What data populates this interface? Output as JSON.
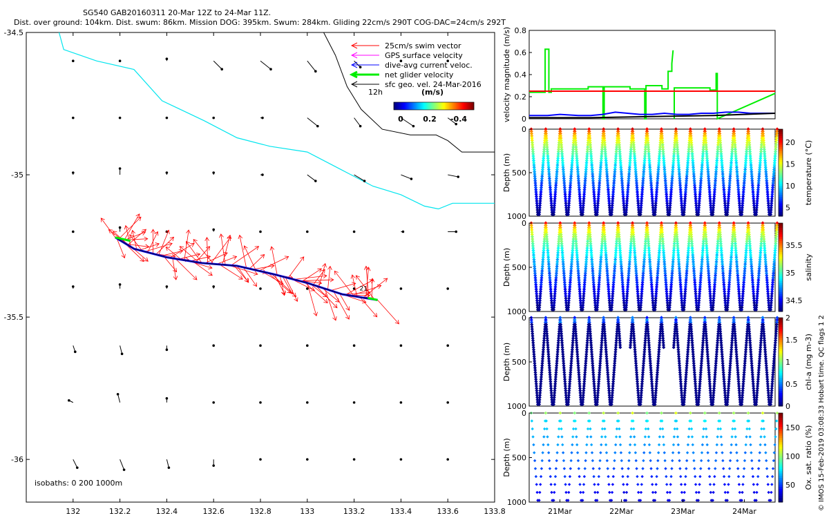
{
  "header": {
    "title": "SG540 GAB20160311 20-Mar 12Z to 24-Mar 11Z.",
    "subtitle": "Dist. over ground: 104km. Dist. swum: 86km. Mission DOG: 395km. Swum: 284km. Gliding 22cm/s 290T COG-DAC=24cm/s 292T"
  },
  "side_note": "© IMOS 15-Feb-2019 03:08:33 Hobart time. QC flags 1  2",
  "colors": {
    "swim": "#ff0000",
    "gps": "#ff00ff",
    "dac": "#0000ff",
    "net": "#00ee00",
    "sfc": "#000000",
    "isobath": "#00e5ee"
  },
  "chart_data": [
    {
      "type": "map",
      "name": "glider-track-map",
      "xlim": [
        131.8,
        133.8
      ],
      "ylim": [
        -36.15,
        -34.5
      ],
      "x_ticks": [
        "132",
        "132.2",
        "132.4",
        "132.6",
        "132.8",
        "133",
        "133.2",
        "133.4",
        "133.6",
        "133.8"
      ],
      "x_tick_values": [
        132,
        132.2,
        132.4,
        132.6,
        132.8,
        133,
        133.2,
        133.4,
        133.6,
        133.8
      ],
      "y_ticks": [
        "-34.5",
        "-35",
        "-35.5",
        "-36"
      ],
      "y_tick_values": [
        -34.5,
        -35,
        -35.5,
        -36
      ],
      "legend": [
        {
          "label": "25cm/s swim vector",
          "color": "#ff0000",
          "width": 1
        },
        {
          "label": "GPS surface velocity",
          "color": "#ff00ff",
          "width": 1
        },
        {
          "label": "dive-avg current veloc.",
          "color": "#0000ff",
          "width": 1
        },
        {
          "label": "net glider velocity",
          "color": "#00ee00",
          "width": 3
        },
        {
          "label": "sfc geo. vel. 24-Mar-2016",
          "color": "#000000",
          "width": 1
        }
      ],
      "scale_label": "12h",
      "colorbar": {
        "title": "(m/s)",
        "tick_labels": [
          "0",
          "0.2",
          "-0.4"
        ]
      },
      "isobath_note": "isobaths: 0   200  1000m",
      "isobath_1000m": [
        [
          131.94,
          -34.5
        ],
        [
          131.96,
          -34.56
        ],
        [
          132.1,
          -34.6
        ],
        [
          132.26,
          -34.63
        ],
        [
          132.38,
          -34.74
        ],
        [
          132.56,
          -34.81
        ],
        [
          132.7,
          -34.87
        ],
        [
          132.84,
          -34.9
        ],
        [
          133,
          -34.92
        ],
        [
          133.14,
          -34.98
        ],
        [
          133.28,
          -35.04
        ],
        [
          133.4,
          -35.07
        ],
        [
          133.5,
          -35.11
        ],
        [
          133.56,
          -35.12
        ],
        [
          133.62,
          -35.1
        ],
        [
          133.7,
          -35.1
        ],
        [
          133.8,
          -35.1
        ]
      ],
      "isobath_200m": [
        [
          133.07,
          -34.5
        ],
        [
          133.12,
          -34.58
        ],
        [
          133.17,
          -34.69
        ],
        [
          133.23,
          -34.77
        ],
        [
          133.32,
          -34.84
        ],
        [
          133.44,
          -34.86
        ],
        [
          133.55,
          -34.86
        ],
        [
          133.6,
          -34.88
        ],
        [
          133.66,
          -34.92
        ],
        [
          133.72,
          -34.92
        ],
        [
          133.8,
          -34.92
        ]
      ],
      "track": [
        [
          132.18,
          -35.22
        ],
        [
          132.26,
          -35.26
        ],
        [
          132.4,
          -35.29
        ],
        [
          132.55,
          -35.31
        ],
        [
          132.7,
          -35.32
        ],
        [
          132.86,
          -35.35
        ],
        [
          133.0,
          -35.38
        ],
        [
          133.15,
          -35.42
        ],
        [
          133.3,
          -35.44
        ]
      ],
      "track_label": "21",
      "current_grid_lon": [
        132,
        132.2,
        132.4,
        132.6,
        132.8,
        133,
        133.2,
        133.4,
        133.6
      ],
      "current_grid_lat": [
        -34.6,
        -34.8,
        -35.0,
        -35.2,
        -35.4,
        -35.6,
        -35.8,
        -36.0
      ],
      "current_vectors": [
        [
          [
            0,
            0
          ],
          [
            0,
            0
          ],
          [
            0,
            0.01
          ],
          [
            0.04,
            -0.04
          ],
          [
            0.05,
            -0.04
          ],
          [
            0.04,
            -0.05
          ],
          [
            0.03,
            -0.03
          ],
          [
            0,
            0
          ],
          [
            0,
            0
          ]
        ],
        [
          [
            0,
            0
          ],
          [
            0,
            0
          ],
          [
            0,
            0
          ],
          [
            0,
            0
          ],
          [
            0.01,
            0
          ],
          [
            0.05,
            -0.04
          ],
          [
            0.03,
            -0.04
          ],
          [
            0.06,
            -0.04
          ],
          [
            0.04,
            -0.03
          ]
        ],
        [
          [
            0,
            0.01
          ],
          [
            0,
            0.03
          ],
          [
            0,
            0.01
          ],
          [
            0,
            0.01
          ],
          [
            0.01,
            0
          ],
          [
            0.04,
            -0.03
          ],
          [
            0.05,
            -0.03
          ],
          [
            0.05,
            -0.02
          ],
          [
            0.05,
            -0.01
          ]
        ],
        [
          [
            0,
            0
          ],
          [
            0,
            0.02
          ],
          [
            0,
            0
          ],
          [
            0,
            0.01
          ],
          [
            0,
            0
          ],
          [
            0,
            0
          ],
          [
            0,
            0
          ],
          [
            0.01,
            0
          ],
          [
            0.04,
            0
          ]
        ],
        [
          [
            0,
            0.01
          ],
          [
            0,
            0.02
          ],
          [
            0,
            0.01
          ],
          [
            0,
            0.01
          ],
          [
            0,
            0
          ],
          [
            0,
            0
          ],
          [
            0,
            0
          ],
          [
            0,
            0
          ],
          [
            0,
            0
          ]
        ],
        [
          [
            0.01,
            -0.03
          ],
          [
            0.01,
            -0.04
          ],
          [
            0,
            -0.02
          ],
          [
            0,
            0
          ],
          [
            0,
            0
          ],
          [
            0,
            0
          ],
          [
            0,
            0
          ],
          [
            0,
            0
          ],
          [
            0,
            0
          ]
        ],
        [
          [
            -0.02,
            0.01
          ],
          [
            -0.01,
            0.04
          ],
          [
            0,
            0.02
          ],
          [
            0,
            0
          ],
          [
            0,
            0
          ],
          [
            0,
            0
          ],
          [
            0,
            0
          ],
          [
            0,
            0
          ],
          [
            0,
            0
          ]
        ],
        [
          [
            0.02,
            -0.04
          ],
          [
            0.02,
            -0.05
          ],
          [
            0.01,
            -0.04
          ],
          [
            0,
            -0.03
          ],
          [
            0,
            0
          ],
          [
            0,
            0
          ],
          [
            0,
            0
          ],
          [
            0,
            0
          ],
          [
            0,
            0
          ]
        ]
      ]
    },
    {
      "type": "line",
      "name": "velocity-magnitude-panel",
      "ylabel": "velocity magnitude (m/s)",
      "ylim": [
        0,
        0.8
      ],
      "y_ticks": [
        "0",
        "0.2",
        "0.4",
        "0.6",
        "0.8"
      ],
      "y_tick_values": [
        0,
        0.2,
        0.4,
        0.6,
        0.8
      ],
      "xlim": [
        20.5,
        24.5
      ],
      "series": [
        {
          "name": "net glider velocity",
          "color": "#00ee00",
          "x": [
            20.5,
            20.76,
            20.76,
            20.82,
            20.82,
            20.86,
            20.86,
            21.46,
            21.46,
            21.7,
            21.7,
            21.72,
            21.72,
            22.14,
            22.14,
            22.38,
            22.38,
            22.4,
            22.4,
            22.66,
            22.66,
            22.76,
            22.76,
            22.82,
            22.82,
            22.84
          ],
          "y": [
            0.24,
            0.24,
            0.63,
            0.63,
            0.24,
            0.24,
            0.27,
            0.27,
            0.29,
            0.29,
            0,
            0,
            0.29,
            0.29,
            0.27,
            0.27,
            0,
            0,
            0.3,
            0.3,
            0.27,
            0.27,
            0.43,
            0.43,
            0.5,
            0.62
          ]
        },
        {
          "name": "net glider velocity (late)",
          "color": "#00ee00",
          "x": [
            22.86,
            22.86,
            23.44,
            23.44,
            23.54,
            23.54,
            23.56,
            23.56,
            24.5
          ],
          "y": [
            0,
            0.28,
            0.28,
            0.26,
            0.26,
            0.41,
            0.41,
            0,
            0.23
          ]
        },
        {
          "name": "swim speed",
          "color": "#ff0000",
          "x": [
            20.5,
            24.5
          ],
          "y": [
            0.25,
            0.25
          ]
        },
        {
          "name": "dive-avg current",
          "color": "#0000ff",
          "x": [
            20.5,
            20.8,
            21,
            21.3,
            21.5,
            21.7,
            21.9,
            22.1,
            22.3,
            22.5,
            22.7,
            22.9,
            23.1,
            23.3,
            23.5,
            23.7,
            23.9,
            24.1,
            24.3,
            24.5
          ],
          "y": [
            0.03,
            0.03,
            0.04,
            0.03,
            0.03,
            0.04,
            0.06,
            0.05,
            0.04,
            0.04,
            0.05,
            0.04,
            0.04,
            0.05,
            0.05,
            0.06,
            0.06,
            0.05,
            0.05,
            0.05
          ]
        },
        {
          "name": "sfc geo velocity",
          "color": "#000000",
          "x": [
            20.5,
            21.5,
            22.5,
            23.5,
            24.5
          ],
          "y": [
            0.01,
            0.01,
            0.02,
            0.03,
            0.05
          ]
        }
      ]
    },
    {
      "type": "scatter",
      "name": "temperature-section",
      "ylabel": "Depth (m)",
      "ylim": [
        1000,
        0
      ],
      "y_ticks": [
        "0",
        "500",
        "1000"
      ],
      "y_tick_values": [
        0,
        500,
        1000
      ],
      "colorbar_label": "temperature (°C)",
      "cmin": 3,
      "cmax": 23,
      "cticks": [
        "5",
        "10",
        "15",
        "20"
      ],
      "ctick_values": [
        5,
        10,
        15,
        20
      ],
      "profile_kind": "temperature",
      "profiles": 17,
      "max_depth": 1000
    },
    {
      "type": "scatter",
      "name": "salinity-section",
      "ylabel": "Depth (m)",
      "ylim": [
        1000,
        0
      ],
      "y_ticks": [
        "0",
        "500",
        "1000"
      ],
      "y_tick_values": [
        0,
        500,
        1000
      ],
      "colorbar_label": "salinity",
      "cmin": 34.3,
      "cmax": 35.9,
      "cticks": [
        "34.5",
        "35",
        "35.5"
      ],
      "ctick_values": [
        34.5,
        35,
        35.5
      ],
      "profile_kind": "salinity",
      "profiles": 17,
      "max_depth": 1000
    },
    {
      "type": "scatter",
      "name": "chlorophyll-section",
      "ylabel": "Depth (m)",
      "ylim": [
        1000,
        0
      ],
      "y_ticks": [
        "0",
        "500",
        "1000"
      ],
      "y_tick_values": [
        0,
        500,
        1000
      ],
      "colorbar_label": "chl-a (mg m-3)",
      "cmin": 0,
      "cmax": 2,
      "cticks": [
        "0",
        "0.5",
        "1",
        "1.5",
        "2"
      ],
      "ctick_values": [
        0,
        0.5,
        1,
        1.5,
        2
      ],
      "profile_kind": "chl",
      "profiles": 17,
      "max_depth": 1000
    },
    {
      "type": "scatter",
      "name": "oxygen-section",
      "ylabel": "Depth (m)",
      "ylim": [
        1000,
        0
      ],
      "y_ticks": [
        "0",
        "500",
        "1000"
      ],
      "y_tick_values": [
        0,
        500,
        1000
      ],
      "colorbar_label": "Ox. sat. ratio (%)",
      "cmin": 20,
      "cmax": 175,
      "cticks": [
        "50",
        "100",
        "150"
      ],
      "ctick_values": [
        50,
        100,
        150
      ],
      "profile_kind": "oxy",
      "profiles": 17,
      "max_depth": 1000,
      "x_ticks": [
        "21Mar",
        "22Mar",
        "23Mar",
        "24Mar"
      ],
      "x_tick_values": [
        21,
        22,
        23,
        24
      ],
      "xlim": [
        20.5,
        24.5
      ]
    }
  ]
}
